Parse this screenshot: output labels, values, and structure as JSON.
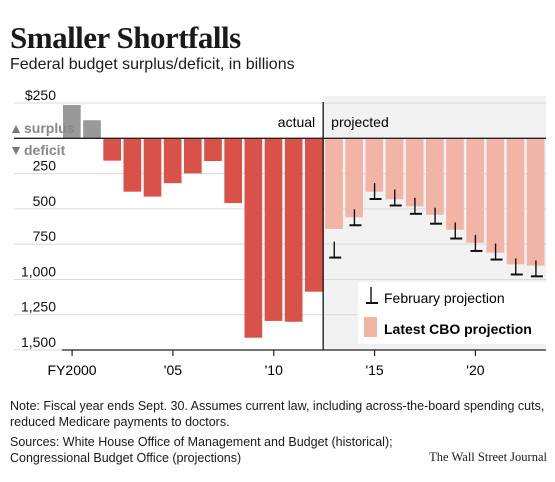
{
  "title": "Smaller Shortfalls",
  "subtitle": "Federal budget surplus/deficit, in billions",
  "note": "Note: Fiscal year ends Sept. 30. Assumes current law, including across-the-board spending cuts, reduced Medicare payments to doctors.",
  "sources": [
    "Sources: White House Office of Management and Budget (historical);",
    "Congressional Budget Office (projections)"
  ],
  "credit": "The Wall Street Journal",
  "colors": {
    "actual_deficit": "#d9524a",
    "surplus": "#999999",
    "projection": "#f2b4a5",
    "projected_bg": "#f2f2f2",
    "axis": "#222222"
  },
  "chart_data": {
    "type": "bar",
    "region_labels": {
      "actual": "actual",
      "projected": "projected"
    },
    "surplus_label": "surplus",
    "deficit_label": "deficit",
    "y_tick_labels": [
      "$250",
      "250",
      "500",
      "750",
      "1,000",
      "1,250",
      "1,500"
    ],
    "y_ticks": [
      250,
      -250,
      -500,
      -750,
      -1000,
      -1250,
      -1500
    ],
    "ylim": [
      -1500,
      300
    ],
    "x_tick_labels": [
      {
        "year": 2000,
        "label": "FY2000"
      },
      {
        "year": 2005,
        "label": "'05"
      },
      {
        "year": 2010,
        "label": "'10"
      },
      {
        "year": 2015,
        "label": "'15"
      },
      {
        "year": 2020,
        "label": "'20"
      }
    ],
    "legend": {
      "february": "February projection",
      "latest": "Latest CBO projection"
    },
    "series": [
      {
        "name": "actual",
        "x": [
          2000,
          2001,
          2002,
          2003,
          2004,
          2005,
          2006,
          2007,
          2008,
          2009,
          2010,
          2011,
          2012
        ],
        "values": [
          236,
          128,
          -158,
          -378,
          -413,
          -318,
          -248,
          -161,
          -459,
          -1413,
          -1294,
          -1300,
          -1087
        ]
      },
      {
        "name": "Latest CBO projection",
        "x": [
          2013,
          2014,
          2015,
          2016,
          2017,
          2018,
          2019,
          2020,
          2021,
          2022,
          2023
        ],
        "values": [
          -642,
          -560,
          -378,
          -432,
          -482,
          -542,
          -648,
          -740,
          -810,
          -893,
          -901
        ]
      },
      {
        "name": "February projection",
        "x": [
          2013,
          2014,
          2015,
          2016,
          2017,
          2018,
          2019,
          2020,
          2021,
          2022,
          2023
        ],
        "values": [
          -845,
          -616,
          -430,
          -476,
          -535,
          -605,
          -710,
          -798,
          -859,
          -965,
          -978
        ]
      }
    ]
  }
}
